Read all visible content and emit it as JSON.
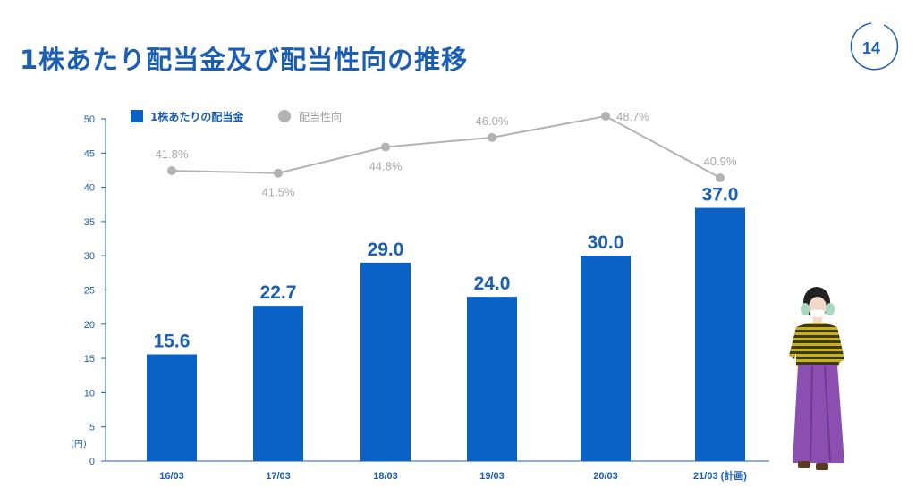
{
  "header": {
    "title": "1株あたり配当金及び配当性向の推移",
    "page_number": "14"
  },
  "colors": {
    "accent": "#1a5fb4",
    "bar": "#0a62c6",
    "line": "#b3b3b3",
    "line_label": "#a8a8a8"
  },
  "illustration": {
    "icon": "woman-in-striped-sweater-and-purple-skirt-illustration"
  },
  "chart_data": {
    "type": "bar",
    "categories": [
      "16/03",
      "17/03",
      "18/03",
      "19/03",
      "20/03",
      "21/03 (計画)"
    ],
    "y_unit": "(円)",
    "ylim": [
      0,
      50
    ],
    "yticks": [
      "0",
      "5",
      "10",
      "15",
      "20",
      "25",
      "30",
      "35",
      "40",
      "45",
      "50"
    ],
    "grid": false,
    "legend_position": "top-left",
    "series": [
      {
        "name": "1株あたりの配当金",
        "type": "bar",
        "values": [
          15.6,
          22.7,
          29.0,
          24.0,
          30.0,
          37.0
        ],
        "labels": [
          "15.6",
          "22.7",
          "29.0",
          "24.0",
          "30.0",
          "37.0"
        ]
      },
      {
        "name": "配当性向",
        "type": "line",
        "values": [
          41.8,
          41.5,
          44.8,
          46.0,
          48.7,
          40.9
        ],
        "labels": [
          "41.8%",
          "41.5%",
          "44.8%",
          "46.0%",
          "48.7%",
          "40.9%"
        ]
      }
    ]
  }
}
